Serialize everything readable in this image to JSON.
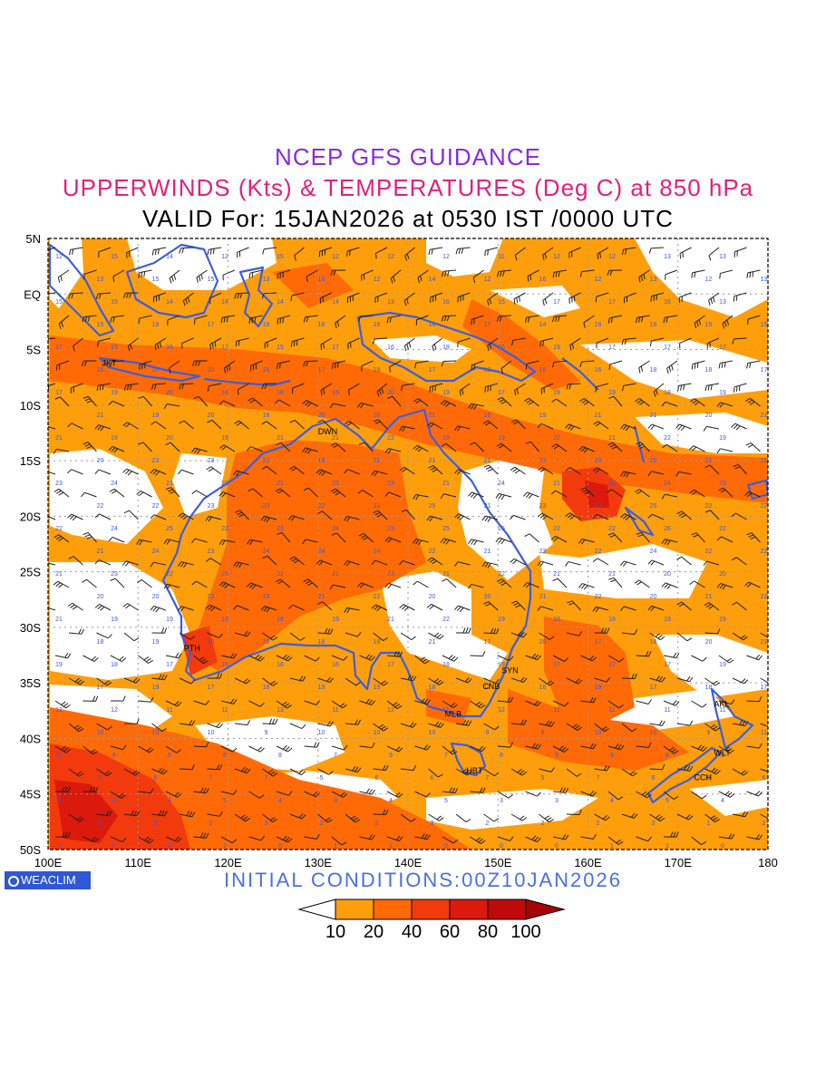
{
  "titles": {
    "line1": "NCEP GFS GUIDANCE",
    "line2": "UPPERWINDS (Kts) & TEMPERATURES (Deg C) at 850 hPa",
    "line3": "VALID For: 15JAN2026 at 0530 IST /0000 UTC"
  },
  "axes": {
    "lat_labels": [
      "5N",
      "EQ",
      "5S",
      "10S",
      "15S",
      "20S",
      "25S",
      "30S",
      "35S",
      "40S",
      "45S",
      "50S"
    ],
    "lon_labels": [
      "100E",
      "110E",
      "120E",
      "130E",
      "140E",
      "150E",
      "160E",
      "170E",
      "180"
    ]
  },
  "stations": [
    {
      "code": "JKT",
      "lon": 106.8,
      "lat": -6.2
    },
    {
      "code": "DWN",
      "lon": 130.8,
      "lat": -12.4
    },
    {
      "code": "PTH",
      "lon": 115.9,
      "lat": -31.9
    },
    {
      "code": "SYN",
      "lon": 151.2,
      "lat": -33.9
    },
    {
      "code": "CNB",
      "lon": 149.1,
      "lat": -35.3
    },
    {
      "code": "MLB",
      "lon": 144.9,
      "lat": -37.8
    },
    {
      "code": "HBT",
      "lon": 147.3,
      "lat": -42.9
    },
    {
      "code": "AKL",
      "lon": 174.8,
      "lat": -36.9
    },
    {
      "code": "WLT",
      "lon": 174.8,
      "lat": -41.3
    },
    {
      "code": "CCH",
      "lon": 172.6,
      "lat": -43.5
    }
  ],
  "legend": {
    "labels": [
      "10",
      "20",
      "40",
      "60",
      "80",
      "100"
    ],
    "colors": [
      "#ffffff",
      "#ff9e0b",
      "#ff6a06",
      "#f23a0c",
      "#db190d",
      "#c00a0a",
      "#a50505"
    ]
  },
  "footer": {
    "initial_conditions": "INITIAL CONDITIONS:00Z10JAN2026",
    "logo_text": "WEACLIM"
  },
  "colors": {
    "coast": "#3a5ee0",
    "temp_labels": "#3d5be0",
    "grid": "#9a9a9a"
  }
}
